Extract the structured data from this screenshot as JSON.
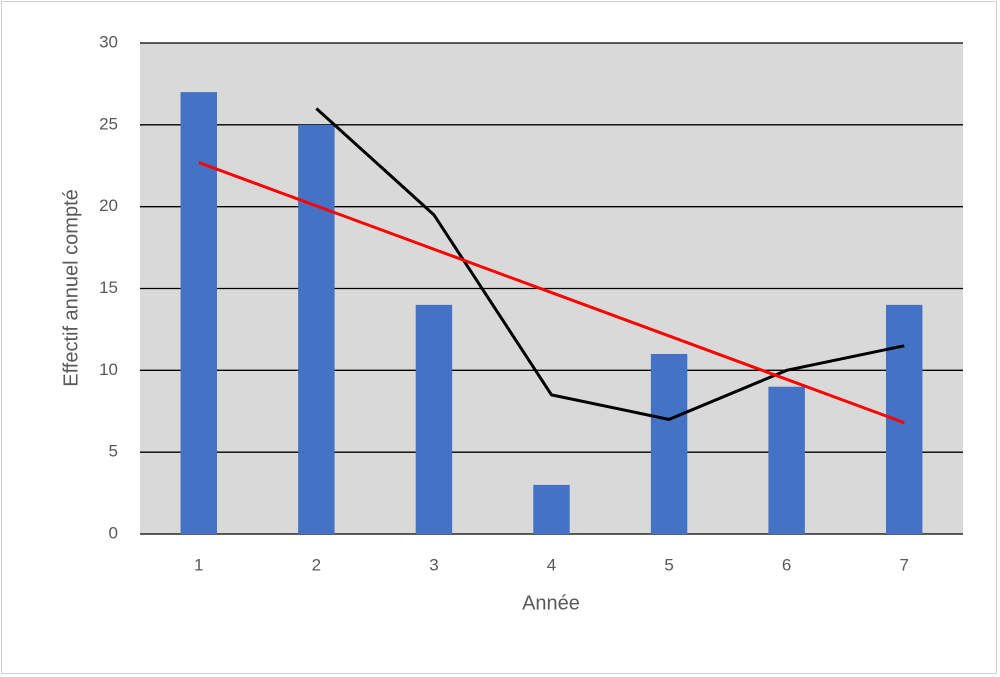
{
  "chart_data": {
    "type": "bar",
    "x_label": "Année",
    "y_label": "Effectif annuel compté",
    "categories": [
      "1",
      "2",
      "3",
      "4",
      "5",
      "6",
      "7"
    ],
    "series": [
      {
        "type": "bar",
        "color": "#4472c4",
        "values": [
          27,
          25,
          14,
          3,
          11,
          9,
          14
        ]
      },
      {
        "type": "line",
        "color": "#000000",
        "values": [
          null,
          26,
          19.5,
          8.5,
          7,
          10,
          11.5
        ]
      },
      {
        "type": "line",
        "color": "#ff0000",
        "values": [
          22.7,
          20.05,
          17.4,
          14.75,
          12.1,
          9.45,
          6.8
        ]
      }
    ],
    "ylim": [
      0,
      30
    ],
    "yticks": [
      0,
      5,
      10,
      15,
      20,
      25,
      30
    ],
    "grid": true,
    "plot_background": "#d9d9d9"
  }
}
